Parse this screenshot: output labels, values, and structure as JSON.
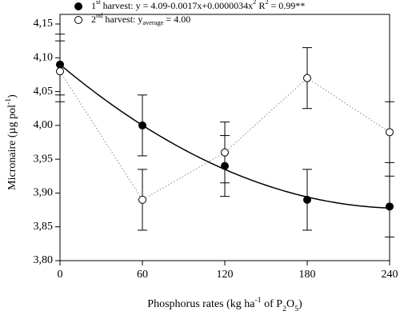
{
  "chart_data": {
    "type": "scatter",
    "x_label": [
      {
        "text": "Phosphorus rates (kg ha"
      },
      {
        "text": "-1",
        "shift": "sup"
      },
      {
        "text": " of P"
      },
      {
        "text": "2",
        "shift": "sub"
      },
      {
        "text": "O"
      },
      {
        "text": "5",
        "shift": "sub"
      },
      {
        "text": ")"
      }
    ],
    "y_label": [
      {
        "text": "Micronaire (µg pol"
      },
      {
        "text": "-1",
        "shift": "sup"
      },
      {
        "text": ")"
      }
    ],
    "x": [
      0,
      60,
      120,
      180,
      240
    ],
    "xlim": [
      0,
      240
    ],
    "xticks": [
      0,
      60,
      120,
      180,
      240
    ],
    "ylim": [
      3.8,
      4.15
    ],
    "yticks": [
      {
        "value": 3.8,
        "label": "3,80"
      },
      {
        "value": 3.85,
        "label": "3,85"
      },
      {
        "value": 3.9,
        "label": "3,90"
      },
      {
        "value": 3.95,
        "label": "3,95"
      },
      {
        "value": 4.0,
        "label": "4,00"
      },
      {
        "value": 4.05,
        "label": "4,05"
      },
      {
        "value": 4.1,
        "label": "4,10"
      },
      {
        "value": 4.15,
        "label": "4,15"
      }
    ],
    "series": [
      {
        "name": [
          {
            "text": "1"
          },
          {
            "text": "st",
            "shift": "sup"
          },
          {
            "text": " harvest: y = 4.09-0.0017x+0.0000034x"
          },
          {
            "text": "2",
            "shift": "sup"
          },
          {
            "text": "    R"
          },
          {
            "text": "2",
            "shift": "sup"
          },
          {
            "text": " = 0.99**"
          }
        ],
        "color": "#000000",
        "marker": "filled",
        "line": "fit",
        "fit_coefficients": [
          4.09,
          -0.0017,
          3.4e-06
        ],
        "values": [
          4.09,
          4.0,
          3.94,
          3.89,
          3.88
        ],
        "errors": [
          0.045,
          0.045,
          0.045,
          0.045,
          0.045
        ]
      },
      {
        "name": [
          {
            "text": "2"
          },
          {
            "text": "nd",
            "shift": "sup"
          },
          {
            "text": " harvest: y"
          },
          {
            "text": "average",
            "shift": "sub"
          },
          {
            "text": " = 4.00"
          }
        ],
        "color": "#000000",
        "marker": "open",
        "line": "dotted",
        "values": [
          4.08,
          3.89,
          3.96,
          4.07,
          3.99
        ],
        "errors": [
          0.045,
          0.045,
          0.045,
          0.045,
          0.045
        ]
      }
    ]
  }
}
